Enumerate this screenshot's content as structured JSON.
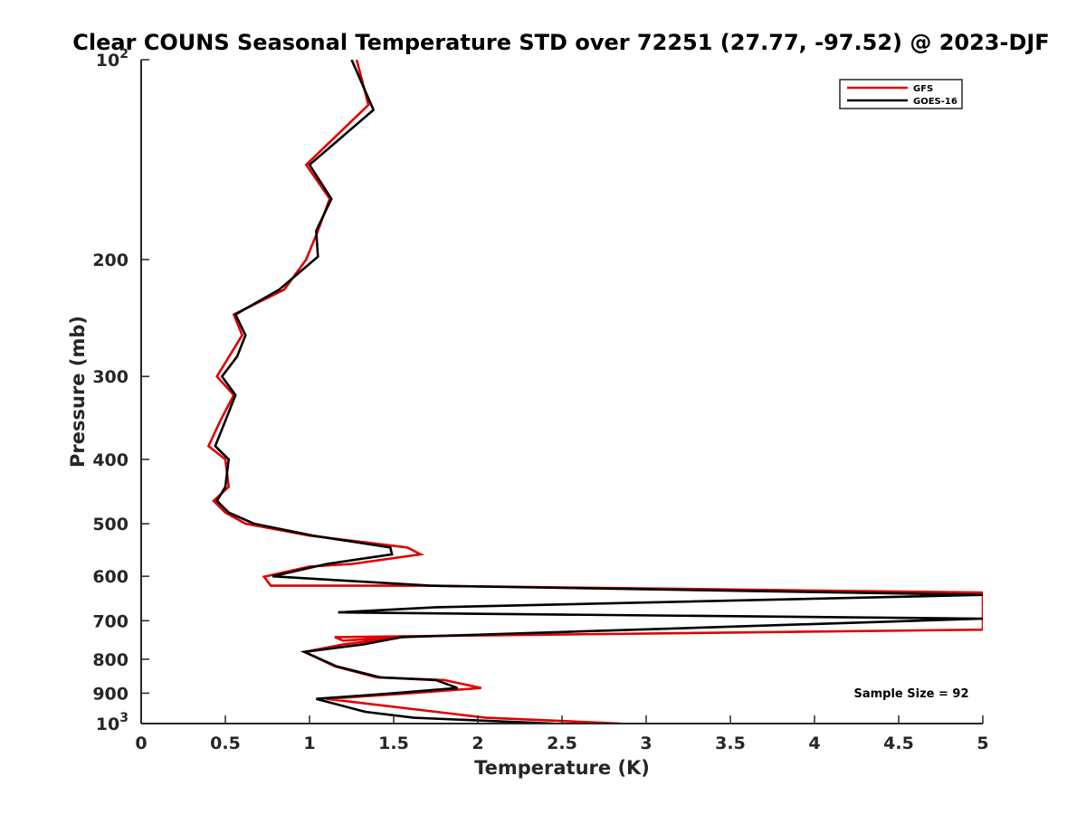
{
  "chart_data": {
    "type": "line",
    "title": "Clear COUNS Seasonal Temperature STD over 72251 (27.77, -97.52) @ 2023-DJF",
    "xlabel": "Temperature (K)",
    "ylabel": "Pressure (mb)",
    "xlim": [
      0,
      5
    ],
    "ylim": [
      100,
      1000
    ],
    "yscale": "log",
    "yreverse": true,
    "x_ticks": [
      "0",
      "0.5",
      "1",
      "1.5",
      "2",
      "2.5",
      "3",
      "3.5",
      "4",
      "4.5",
      "5"
    ],
    "x_tick_values": [
      0,
      0.5,
      1,
      1.5,
      2,
      2.5,
      3,
      3.5,
      4,
      4.5,
      5
    ],
    "y_ticks": [
      {
        "value": 100,
        "label": "10",
        "sup": "2"
      },
      {
        "value": 200,
        "label": "200"
      },
      {
        "value": 300,
        "label": "300"
      },
      {
        "value": 400,
        "label": "400"
      },
      {
        "value": 500,
        "label": "500"
      },
      {
        "value": 600,
        "label": "600"
      },
      {
        "value": 700,
        "label": "700"
      },
      {
        "value": 800,
        "label": "800"
      },
      {
        "value": 900,
        "label": "900"
      },
      {
        "value": 1000,
        "label": "10",
        "sup": "3"
      }
    ],
    "legend_position": "top-right",
    "annotation": "Sample Size = 92",
    "series": [
      {
        "name": "GFS",
        "color": "#e00000",
        "points": [
          [
            1.28,
            100
          ],
          [
            1.35,
            117
          ],
          [
            0.98,
            144
          ],
          [
            1.12,
            162
          ],
          [
            1.05,
            181
          ],
          [
            0.98,
            200
          ],
          [
            0.85,
            222
          ],
          [
            0.55,
            242
          ],
          [
            0.6,
            260
          ],
          [
            0.45,
            300
          ],
          [
            0.55,
            320
          ],
          [
            0.47,
            350
          ],
          [
            0.4,
            382
          ],
          [
            0.5,
            400
          ],
          [
            0.52,
            440
          ],
          [
            0.43,
            462
          ],
          [
            0.5,
            481
          ],
          [
            0.62,
            500
          ],
          [
            1.0,
            521
          ],
          [
            1.58,
            543
          ],
          [
            1.66,
            556
          ],
          [
            1.25,
            575
          ],
          [
            1.0,
            580
          ],
          [
            0.73,
            601
          ],
          [
            0.77,
            620
          ],
          [
            1.7,
            620
          ],
          [
            5.0,
            635
          ],
          [
            5.0,
            722
          ],
          [
            1.15,
            741
          ],
          [
            1.2,
            750
          ],
          [
            1.55,
            741
          ],
          [
            1.2,
            760
          ],
          [
            0.97,
            780
          ],
          [
            1.15,
            820
          ],
          [
            1.4,
            852
          ],
          [
            1.8,
            860
          ],
          [
            2.02,
            884
          ],
          [
            1.6,
            900
          ],
          [
            1.1,
            918
          ],
          [
            1.75,
            960
          ],
          [
            2.05,
            980
          ],
          [
            2.85,
            1000
          ]
        ]
      },
      {
        "name": "GOES-16",
        "color": "#000000",
        "points": [
          [
            1.25,
            100
          ],
          [
            1.38,
            119
          ],
          [
            1.0,
            144
          ],
          [
            1.13,
            162
          ],
          [
            1.04,
            181
          ],
          [
            1.05,
            198
          ],
          [
            0.82,
            222
          ],
          [
            0.56,
            242
          ],
          [
            0.62,
            260
          ],
          [
            0.57,
            280
          ],
          [
            0.48,
            300
          ],
          [
            0.56,
            320
          ],
          [
            0.5,
            350
          ],
          [
            0.44,
            382
          ],
          [
            0.52,
            400
          ],
          [
            0.5,
            440
          ],
          [
            0.45,
            462
          ],
          [
            0.52,
            481
          ],
          [
            0.67,
            500
          ],
          [
            1.02,
            521
          ],
          [
            1.48,
            543
          ],
          [
            1.49,
            556
          ],
          [
            1.1,
            575
          ],
          [
            0.78,
            600
          ],
          [
            1.72,
            620
          ],
          [
            5.0,
            640
          ],
          [
            1.75,
            668
          ],
          [
            1.17,
            680
          ],
          [
            5.0,
            695
          ],
          [
            1.55,
            741
          ],
          [
            1.32,
            760
          ],
          [
            0.97,
            780
          ],
          [
            1.16,
            820
          ],
          [
            1.42,
            852
          ],
          [
            1.75,
            860
          ],
          [
            1.88,
            884
          ],
          [
            1.5,
            900
          ],
          [
            1.04,
            918
          ],
          [
            1.33,
            960
          ],
          [
            1.62,
            980
          ],
          [
            2.45,
            1000
          ]
        ]
      }
    ]
  }
}
